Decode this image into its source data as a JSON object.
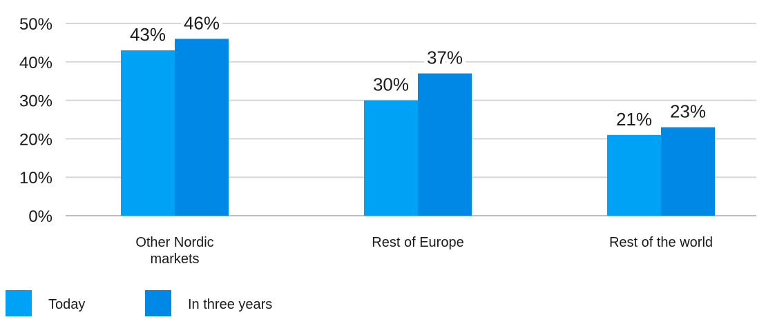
{
  "chart_data": {
    "type": "bar",
    "categories": [
      [
        "Other Nordic",
        "markets"
      ],
      [
        "Rest of Europe"
      ],
      [
        "Rest of the world"
      ]
    ],
    "series": [
      {
        "name": "Today",
        "values": [
          43,
          30,
          21
        ],
        "labels": [
          "43%",
          "30%",
          "21%"
        ],
        "color": "#00a2f5"
      },
      {
        "name": "In three years",
        "values": [
          46,
          37,
          23
        ],
        "labels": [
          "46%",
          "37%",
          "23%"
        ],
        "color": "#0088e6"
      }
    ],
    "ylim": [
      0,
      50
    ],
    "yticks": [
      0,
      10,
      20,
      30,
      40,
      50
    ],
    "ytick_labels": [
      "0%",
      "10%",
      "20%",
      "30%",
      "40%",
      "50%"
    ],
    "grid": true,
    "legend_position": "bottom-left",
    "xlabel": "",
    "ylabel": "",
    "title": ""
  }
}
